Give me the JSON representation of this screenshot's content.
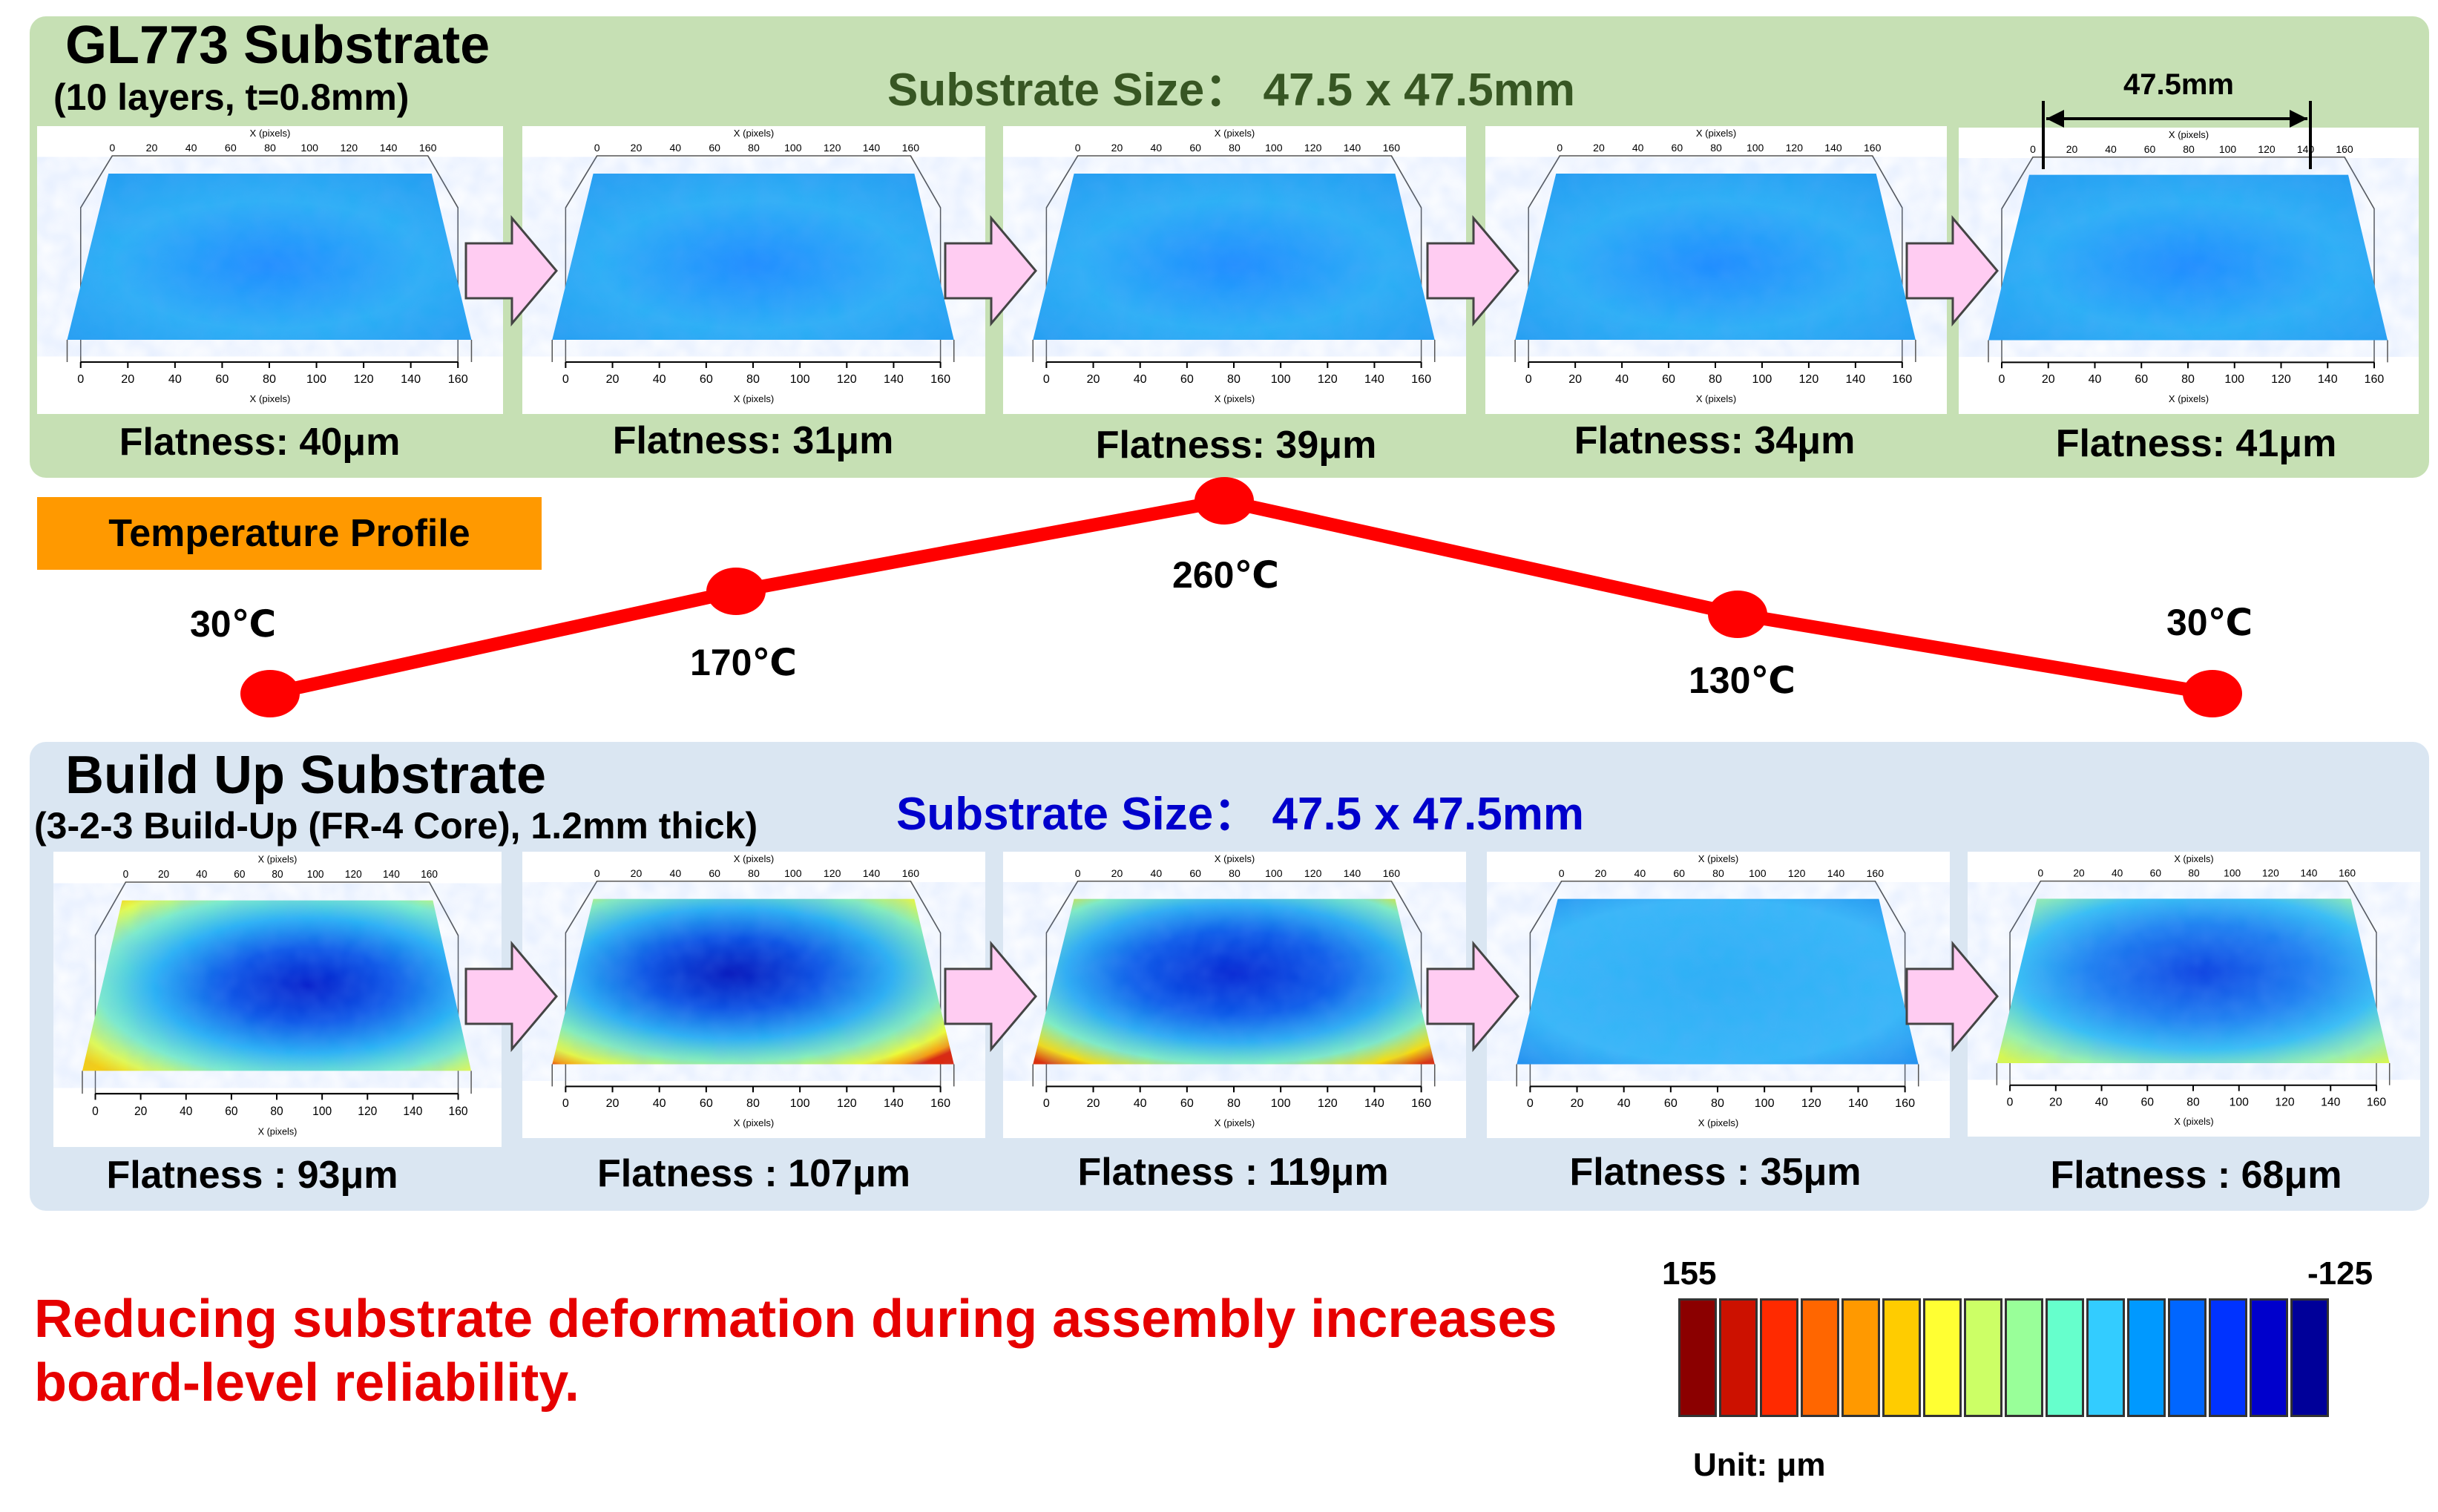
{
  "top": {
    "title": "GL773 Substrate",
    "subtitle": "(10 layers, t=0.8mm)",
    "size_label": "Substrate Size： 47.5 x 47.5mm",
    "dimension_label": "47.5mm",
    "flatness": [
      "Flatness: 40μm",
      "Flatness: 31μm",
      "Flatness: 39μm",
      "Flatness: 34μm",
      "Flatness: 41μm"
    ]
  },
  "temperature": {
    "box_label": "Temperature Profile",
    "points": [
      "30℃",
      "170℃",
      "260℃",
      "130℃",
      "30℃"
    ],
    "values_c": [
      30,
      170,
      260,
      130,
      30
    ],
    "line_color": "#ff0000"
  },
  "bottom": {
    "title": "Build Up Substrate",
    "subtitle": "(3-2-3 Build-Up (FR-4 Core), 1.2mm thick)",
    "size_label": "Substrate Size： 47.5 x 47.5mm",
    "flatness": [
      "Flatness : 93μm",
      "Flatness : 107μm",
      "Flatness : 119μm",
      "Flatness : 35μm",
      "Flatness : 68μm"
    ]
  },
  "plot_axis": {
    "label": "X (pixels)",
    "ticks": [
      "0",
      "20",
      "40",
      "60",
      "80",
      "100",
      "120",
      "140",
      "160"
    ]
  },
  "message": "Reducing substrate deformation during assembly increases board-level reliability.",
  "legend": {
    "max": "155",
    "min": "-125",
    "unit": "Unit: μm",
    "colors": [
      "#8b0000",
      "#cc1100",
      "#ff2a00",
      "#ff6600",
      "#ff9900",
      "#ffcc00",
      "#ffff33",
      "#ccff66",
      "#99ff99",
      "#66ffcc",
      "#33ccff",
      "#0099ff",
      "#0066ff",
      "#0033ff",
      "#0000cc",
      "#000099"
    ]
  },
  "colors": {
    "top_panel": "#c6e0b4",
    "bottom_panel": "#dae6f2",
    "arrow_fill": "#ffccf2"
  }
}
